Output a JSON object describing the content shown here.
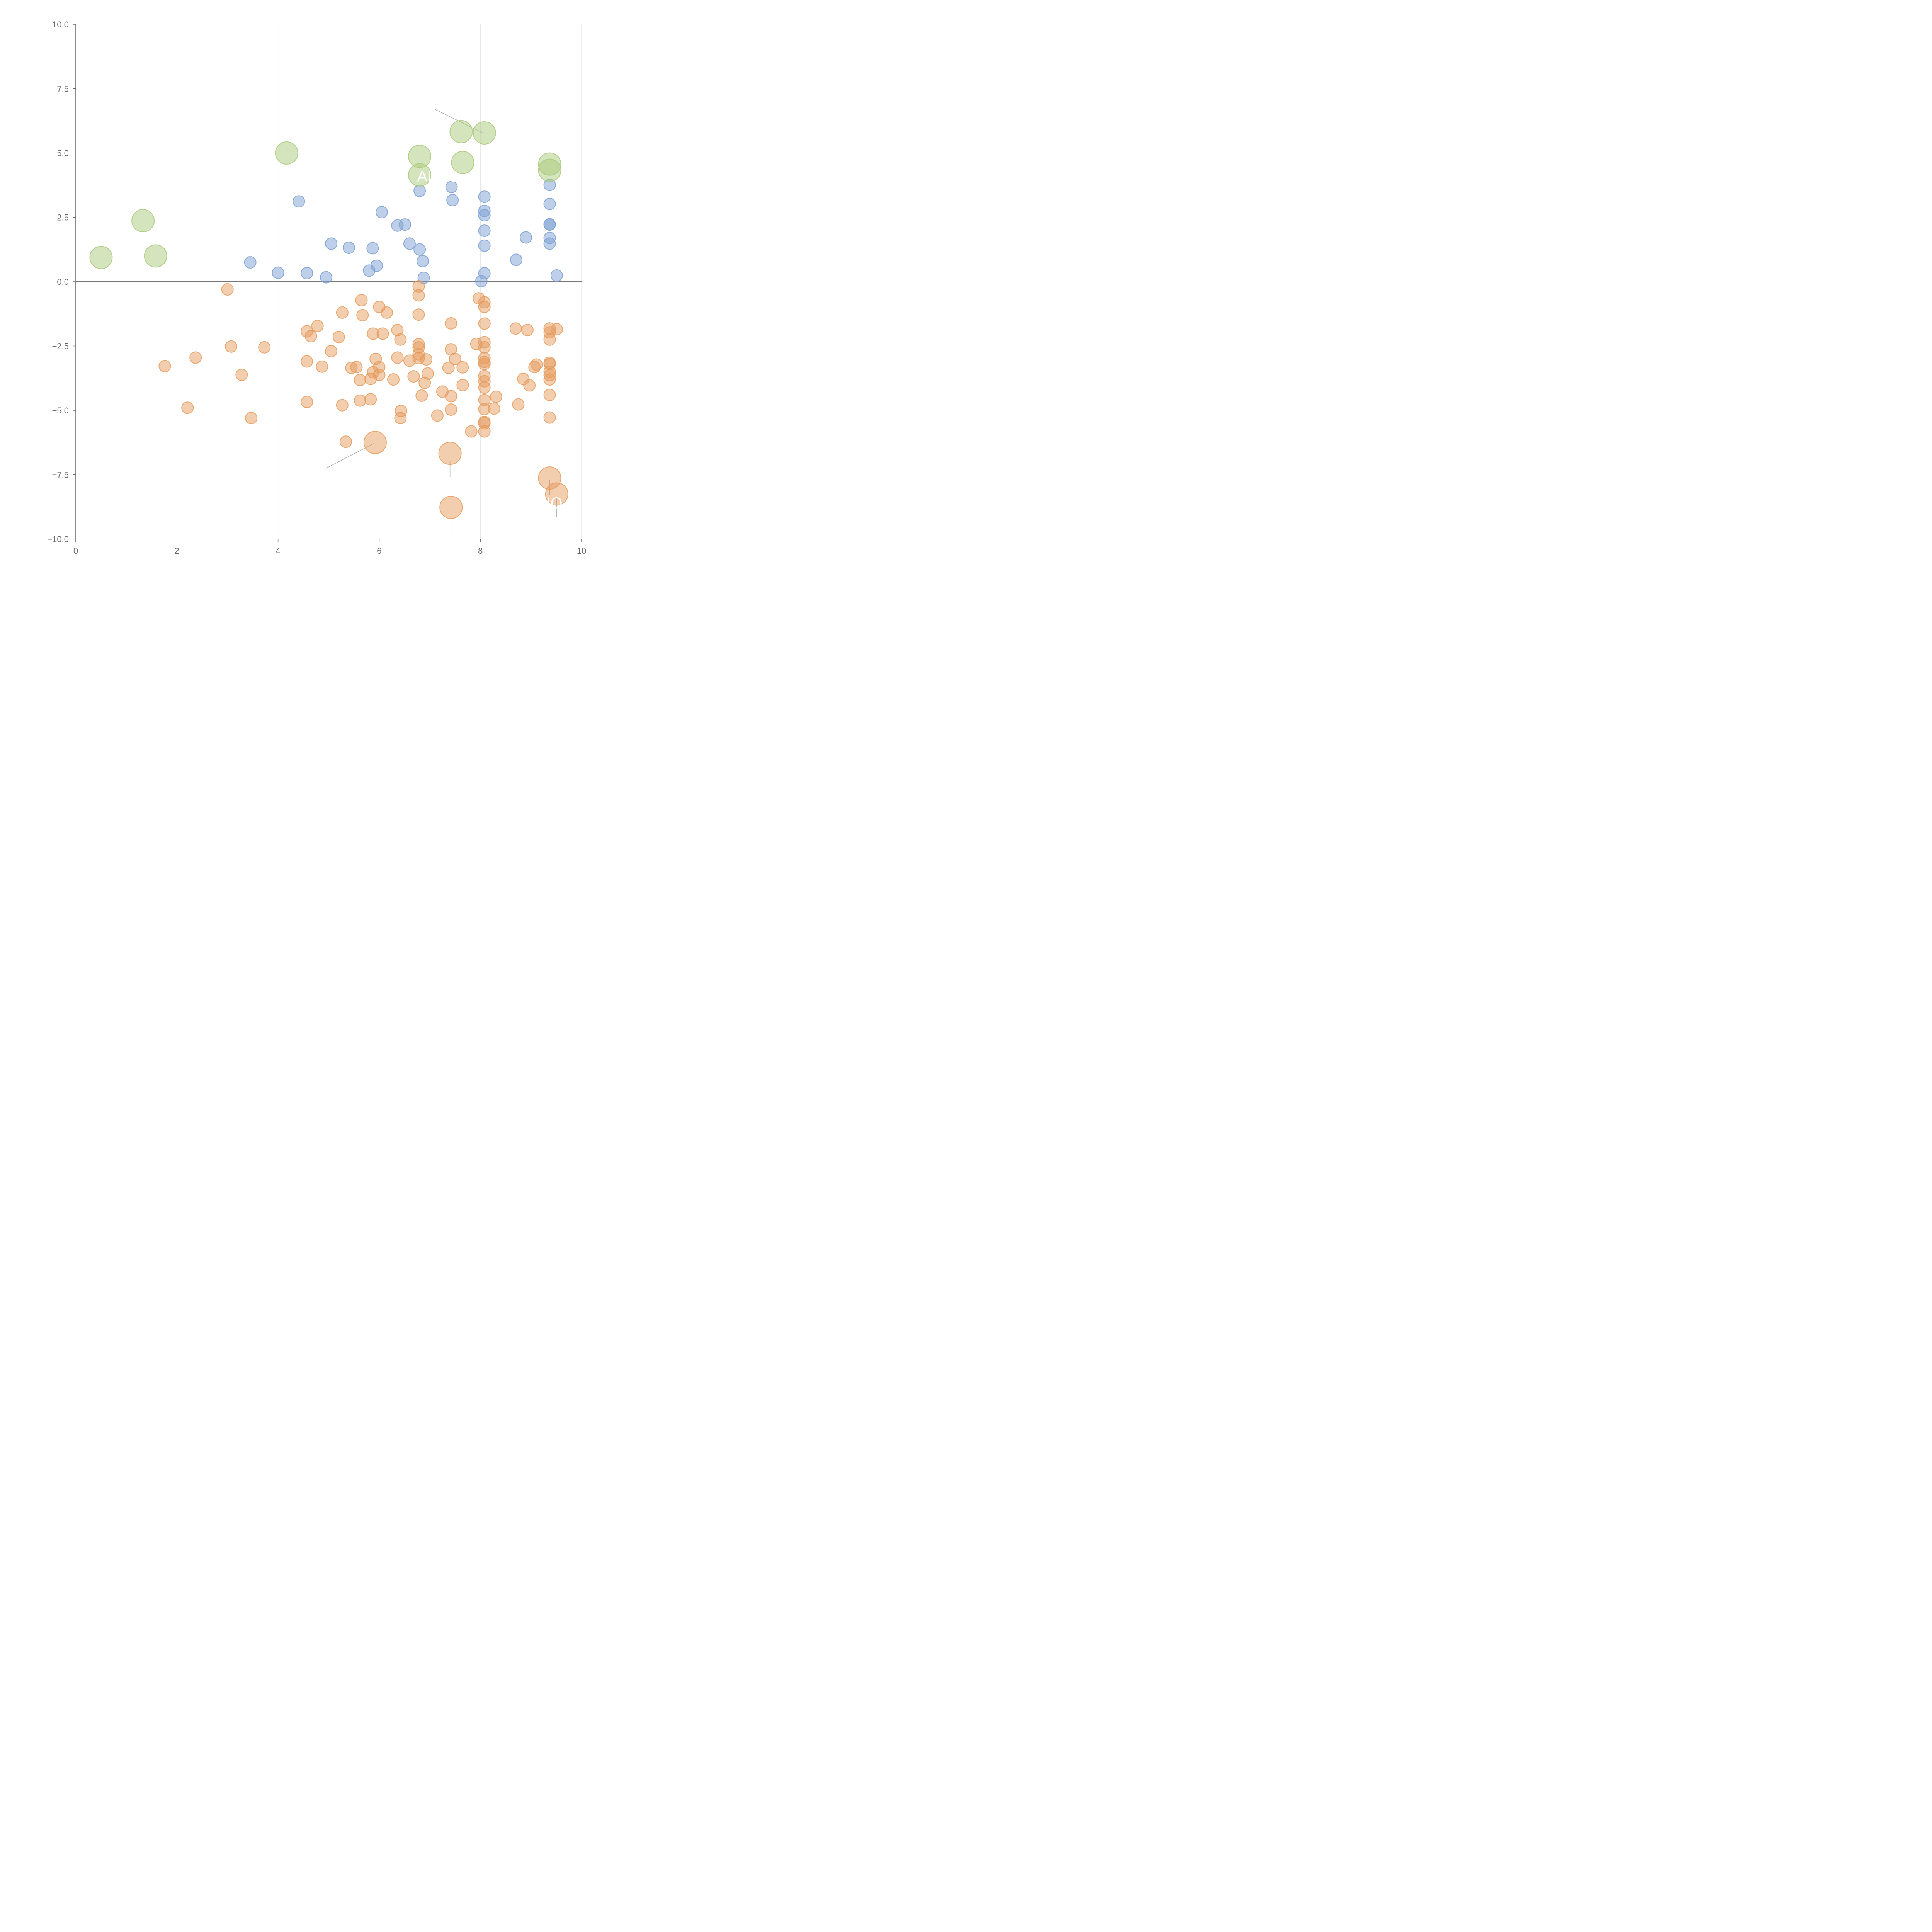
{
  "chart_data": {
    "type": "scatter",
    "title": "",
    "xlabel": "",
    "ylabel": "",
    "xlim": [
      0,
      10
    ],
    "ylim": [
      -10,
      10
    ],
    "x_ticks": [
      0,
      2,
      4,
      6,
      8,
      10
    ],
    "x_tick_labels": [
      "0",
      "2",
      "4",
      "6",
      "8",
      "10"
    ],
    "y_ticks": [
      -10,
      -7.5,
      -5,
      -2.5,
      0,
      2.5,
      5,
      7.5,
      10
    ],
    "y_tick_labels": [
      "−10.0",
      "−7.5",
      "−5.0",
      "−2.5",
      "0.0",
      "2.5",
      "5.0",
      "7.5",
      "10.0"
    ],
    "vertical_gridlines": true,
    "horizontal_gridlines": false,
    "reference_line_y": 0,
    "colors": {
      "blue": "#7b9fd3",
      "orange": "#e59b5d",
      "green": "#a9c97a",
      "axis": "#666666",
      "grid": "#dddddd"
    },
    "series": [
      {
        "color": "blue",
        "size": 1,
        "points": [
          [
            3.45,
            0.75
          ],
          [
            4.0,
            0.35
          ],
          [
            4.41,
            3.12
          ],
          [
            4.57,
            0.33
          ],
          [
            4.95,
            0.17
          ],
          [
            5.05,
            1.48
          ],
          [
            5.4,
            1.32
          ],
          [
            5.8,
            0.43
          ],
          [
            5.87,
            1.3
          ],
          [
            5.95,
            0.62
          ],
          [
            6.05,
            2.7
          ],
          [
            6.36,
            2.18
          ],
          [
            6.51,
            2.22
          ],
          [
            6.6,
            1.48
          ],
          [
            6.8,
            1.25
          ],
          [
            6.8,
            3.53
          ],
          [
            6.86,
            0.8
          ],
          [
            6.88,
            0.15
          ],
          [
            7.43,
            3.68
          ],
          [
            7.45,
            3.17
          ],
          [
            8.02,
            0.02
          ],
          [
            8.08,
            3.3
          ],
          [
            8.08,
            2.75
          ],
          [
            8.08,
            2.58
          ],
          [
            8.08,
            1.98
          ],
          [
            8.08,
            1.4
          ],
          [
            8.08,
            0.33
          ],
          [
            8.71,
            0.85
          ],
          [
            8.9,
            1.72
          ],
          [
            9.37,
            3.76
          ],
          [
            9.37,
            3.02
          ],
          [
            9.37,
            2.23
          ],
          [
            9.37,
            2.22
          ],
          [
            9.37,
            1.7
          ],
          [
            9.37,
            1.48
          ],
          [
            9.51,
            0.24
          ]
        ]
      },
      {
        "color": "green",
        "size": 2,
        "points": [
          [
            0.5,
            0.94
          ],
          [
            1.33,
            2.37
          ],
          [
            1.58,
            1.0
          ],
          [
            4.17,
            5.0
          ],
          [
            6.8,
            4.87
          ],
          [
            6.8,
            4.15
          ],
          [
            7.62,
            5.83
          ],
          [
            7.65,
            4.63
          ],
          [
            8.08,
            5.78
          ],
          [
            9.37,
            4.57
          ],
          [
            9.37,
            4.33
          ]
        ]
      },
      {
        "color": "orange",
        "size": 1,
        "points": [
          [
            3.0,
            -0.3
          ],
          [
            1.76,
            -3.28
          ],
          [
            2.21,
            -4.9
          ],
          [
            2.37,
            -2.95
          ],
          [
            3.07,
            -2.52
          ],
          [
            3.28,
            -3.62
          ],
          [
            3.47,
            -5.3
          ],
          [
            3.73,
            -2.55
          ],
          [
            4.57,
            -1.93
          ],
          [
            4.57,
            -3.1
          ],
          [
            4.57,
            -4.67
          ],
          [
            4.65,
            -2.12
          ],
          [
            4.78,
            -1.72
          ],
          [
            4.87,
            -3.3
          ],
          [
            5.05,
            -2.7
          ],
          [
            5.2,
            -2.15
          ],
          [
            5.27,
            -1.2
          ],
          [
            5.27,
            -4.8
          ],
          [
            5.34,
            -6.22
          ],
          [
            5.45,
            -3.35
          ],
          [
            5.55,
            -3.32
          ],
          [
            5.62,
            -3.82
          ],
          [
            5.62,
            -4.62
          ],
          [
            5.65,
            -0.72
          ],
          [
            5.67,
            -1.3
          ],
          [
            5.83,
            -3.78
          ],
          [
            5.83,
            -4.57
          ],
          [
            5.88,
            -2.02
          ],
          [
            5.88,
            -3.52
          ],
          [
            5.93,
            -3.0
          ],
          [
            6.0,
            -0.98
          ],
          [
            6.0,
            -3.32
          ],
          [
            6.0,
            -3.62
          ],
          [
            6.07,
            -2.02
          ],
          [
            6.15,
            -1.2
          ],
          [
            6.28,
            -3.8
          ],
          [
            6.36,
            -1.88
          ],
          [
            6.36,
            -2.95
          ],
          [
            6.42,
            -2.25
          ],
          [
            6.42,
            -5.3
          ],
          [
            6.43,
            -5.02
          ],
          [
            6.6,
            -3.07
          ],
          [
            6.68,
            -3.68
          ],
          [
            6.78,
            -0.18
          ],
          [
            6.78,
            -0.53
          ],
          [
            6.78,
            -1.28
          ],
          [
            6.78,
            -2.43
          ],
          [
            6.78,
            -2.55
          ],
          [
            6.78,
            -2.82
          ],
          [
            6.78,
            -2.97
          ],
          [
            6.84,
            -4.43
          ],
          [
            6.9,
            -3.93
          ],
          [
            6.93,
            -3.02
          ],
          [
            6.96,
            -3.57
          ],
          [
            7.15,
            -5.2
          ],
          [
            7.25,
            -4.27
          ],
          [
            7.37,
            -3.35
          ],
          [
            7.42,
            -1.62
          ],
          [
            7.42,
            -2.63
          ],
          [
            7.42,
            -4.45
          ],
          [
            7.42,
            -4.97
          ],
          [
            7.5,
            -3.0
          ],
          [
            7.65,
            -3.33
          ],
          [
            7.65,
            -4.02
          ],
          [
            7.82,
            -5.82
          ],
          [
            7.92,
            -2.42
          ],
          [
            7.97,
            -0.65
          ],
          [
            8.08,
            -0.8
          ],
          [
            8.08,
            -0.98
          ],
          [
            8.08,
            -1.63
          ],
          [
            8.08,
            -2.35
          ],
          [
            8.08,
            -2.55
          ],
          [
            8.08,
            -2.97
          ],
          [
            8.08,
            -3.12
          ],
          [
            8.08,
            -3.2
          ],
          [
            8.08,
            -3.67
          ],
          [
            8.08,
            -3.87
          ],
          [
            8.08,
            -4.12
          ],
          [
            8.08,
            -4.6
          ],
          [
            8.08,
            -4.95
          ],
          [
            8.08,
            -5.45
          ],
          [
            8.08,
            -5.5
          ],
          [
            8.08,
            -5.82
          ],
          [
            8.27,
            -4.93
          ],
          [
            8.31,
            -4.47
          ],
          [
            8.7,
            -1.82
          ],
          [
            8.75,
            -4.77
          ],
          [
            8.85,
            -3.78
          ],
          [
            8.93,
            -1.88
          ],
          [
            8.97,
            -4.03
          ],
          [
            9.07,
            -3.32
          ],
          [
            9.11,
            -3.22
          ],
          [
            9.37,
            -1.82
          ],
          [
            9.37,
            -1.97
          ],
          [
            9.37,
            -2.25
          ],
          [
            9.37,
            -3.15
          ],
          [
            9.37,
            -3.2
          ],
          [
            9.37,
            -3.5
          ],
          [
            9.37,
            -3.63
          ],
          [
            9.37,
            -3.8
          ],
          [
            9.37,
            -4.4
          ],
          [
            9.37,
            -5.28
          ],
          [
            9.51,
            -1.85
          ]
        ]
      },
      {
        "color": "orange",
        "size": 2,
        "points": [
          [
            5.92,
            -6.25
          ],
          [
            7.4,
            -6.67
          ],
          [
            7.42,
            -8.77
          ],
          [
            9.37,
            -7.63
          ],
          [
            9.51,
            -8.25
          ]
        ]
      }
    ],
    "annotations": [
      {
        "text": "ALDC",
        "x": 6.75,
        "y": 3.9
      },
      {
        "text": "IO",
        "x": 9.3,
        "y": -8.8
      }
    ]
  }
}
